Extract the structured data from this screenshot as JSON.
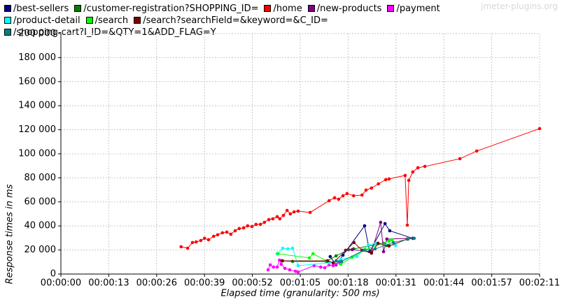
{
  "chart_data": {
    "type": "line",
    "watermark": "jmeter-plugins.org",
    "x_label": "Elapsed time (granularity: 500 ms)",
    "y_label": "Response times in ms",
    "legend_position": "top",
    "grid": true,
    "xlim": [
      0,
      131
    ],
    "xticks": [
      {
        "value": 0,
        "label": "00:00:00"
      },
      {
        "value": 13.1,
        "label": "00:00:13"
      },
      {
        "value": 26.2,
        "label": "00:00:26"
      },
      {
        "value": 39.3,
        "label": "00:00:39"
      },
      {
        "value": 52.4,
        "label": "00:00:52"
      },
      {
        "value": 65.5,
        "label": "00:01:05"
      },
      {
        "value": 78.6,
        "label": "00:01:18"
      },
      {
        "value": 91.7,
        "label": "00:01:31"
      },
      {
        "value": 104.8,
        "label": "00:01:44"
      },
      {
        "value": 117.9,
        "label": "00:01:57"
      },
      {
        "value": 131,
        "label": "00:02:11"
      }
    ],
    "ylim": [
      0,
      200000
    ],
    "yticks": [
      {
        "value": 0,
        "label": "0"
      },
      {
        "value": 20000,
        "label": "20 000"
      },
      {
        "value": 40000,
        "label": "40 000"
      },
      {
        "value": 60000,
        "label": "60 000"
      },
      {
        "value": 80000,
        "label": "80 000"
      },
      {
        "value": 100000,
        "label": "100 000"
      },
      {
        "value": 120000,
        "label": "120 000"
      },
      {
        "value": 140000,
        "label": "140 000"
      },
      {
        "value": 160000,
        "label": "160 000"
      },
      {
        "value": 180000,
        "label": "180 000"
      },
      {
        "value": 200000,
        "label": "200 000"
      }
    ],
    "series": [
      {
        "name": "/best-sellers",
        "color": "#000080",
        "x": [
          73.7,
          75.3,
          77.2,
          83.1,
          84.5,
          88.7,
          90.0,
          96.3
        ],
        "values": [
          14500,
          7600,
          15700,
          40100,
          18600,
          41900,
          36000,
          29700
        ]
      },
      {
        "name": "/customer-registration?SHOPPING_ID=",
        "color": "#008000",
        "x": [
          60.7,
          63.4,
          72.6,
          75.3,
          78.7,
          80.1,
          88.3,
          89.1
        ],
        "values": [
          11000,
          10500,
          10500,
          15100,
          20300,
          20900,
          25600,
          23800
        ]
      },
      {
        "name": "/home",
        "color": "#ff0000",
        "x": [
          32.9,
          34.7,
          36.0,
          37.0,
          38.3,
          39.3,
          40.4,
          41.8,
          42.9,
          44.2,
          45.4,
          46.5,
          47.7,
          48.8,
          50.0,
          51.1,
          52.3,
          53.4,
          54.6,
          55.7,
          56.9,
          58.0,
          59.2,
          59.9,
          60.9,
          61.9,
          62.8,
          63.8,
          64.9,
          68.2,
          73.4,
          74.9,
          76.0,
          77.2,
          78.3,
          80.1,
          82.4,
          83.5,
          85.0,
          86.9,
          88.9,
          89.8,
          94.2,
          94.8,
          95.2,
          96.3,
          97.7,
          99.6,
          109.2,
          113.8,
          131.0
        ],
        "values": [
          22700,
          21500,
          26200,
          26700,
          27900,
          29700,
          28500,
          31400,
          32600,
          34300,
          34900,
          33100,
          36000,
          37800,
          38400,
          40100,
          39500,
          41300,
          41300,
          43000,
          45300,
          45900,
          47700,
          45900,
          48800,
          52900,
          50000,
          51700,
          52300,
          51200,
          61000,
          63400,
          62200,
          65100,
          66900,
          65100,
          65700,
          69800,
          71500,
          75000,
          78500,
          79100,
          82000,
          40700,
          77900,
          84900,
          88400,
          89500,
          95900,
          102300,
          120900
        ]
      },
      {
        "name": "/new-products",
        "color": "#800080",
        "x": [
          77.9,
          79.7,
          85.0,
          87.5,
          88.3,
          89.2,
          96.3
        ],
        "values": [
          19800,
          20300,
          18600,
          43000,
          18600,
          29100,
          29700
        ]
      },
      {
        "name": "/payment",
        "color": "#ff00ff",
        "x": [
          56.7,
          57.3,
          58.2,
          59.2,
          59.8,
          60.3,
          61.3,
          62.6,
          64.2,
          64.9,
          69.3,
          71.1,
          72.2,
          73.4,
          74.5,
          75.3,
          76.4
        ],
        "values": [
          3500,
          7600,
          5800,
          5800,
          11600,
          8100,
          4700,
          3500,
          2300,
          1700,
          7000,
          5800,
          5200,
          7600,
          7000,
          8100,
          9300
        ]
      },
      {
        "name": "/product-detail",
        "color": "#00ffff",
        "x": [
          59.2,
          60.7,
          62.1,
          63.4,
          64.9,
          73.4,
          76.6,
          79.7,
          81.0,
          84.1,
          86.2,
          91.6
        ],
        "values": [
          16900,
          21500,
          20900,
          21500,
          7000,
          9300,
          12200,
          14000,
          14500,
          24400,
          25600,
          23800
        ]
      },
      {
        "name": "/search",
        "color": "#00ff00",
        "x": [
          59.4,
          68.0,
          69.0,
          72.6,
          76.6,
          79.7,
          83.3,
          89.8,
          90.6
        ],
        "values": [
          16900,
          13400,
          16900,
          11000,
          8100,
          14000,
          20300,
          27300,
          28500
        ]
      },
      {
        "name": "/search?searchField=&keyword=&C_ID=",
        "color": "#800000",
        "x": [
          60.5,
          73.0,
          74.5,
          80.2,
          82.4,
          85.0,
          86.8,
          89.8,
          94.8
        ],
        "values": [
          11000,
          11000,
          9300,
          26200,
          19800,
          17400,
          25600,
          23300,
          29100
        ]
      },
      {
        "name": "/shopping-cart?I_ID=&QTY=1&ADD_FLAG=Y",
        "color": "#008080",
        "x": [
          75.3,
          76.8,
          82.9,
          86.0,
          91.0,
          95.0,
          96.7
        ],
        "values": [
          11000,
          10500,
          19800,
          20900,
          26200,
          29100,
          29700
        ]
      }
    ]
  }
}
